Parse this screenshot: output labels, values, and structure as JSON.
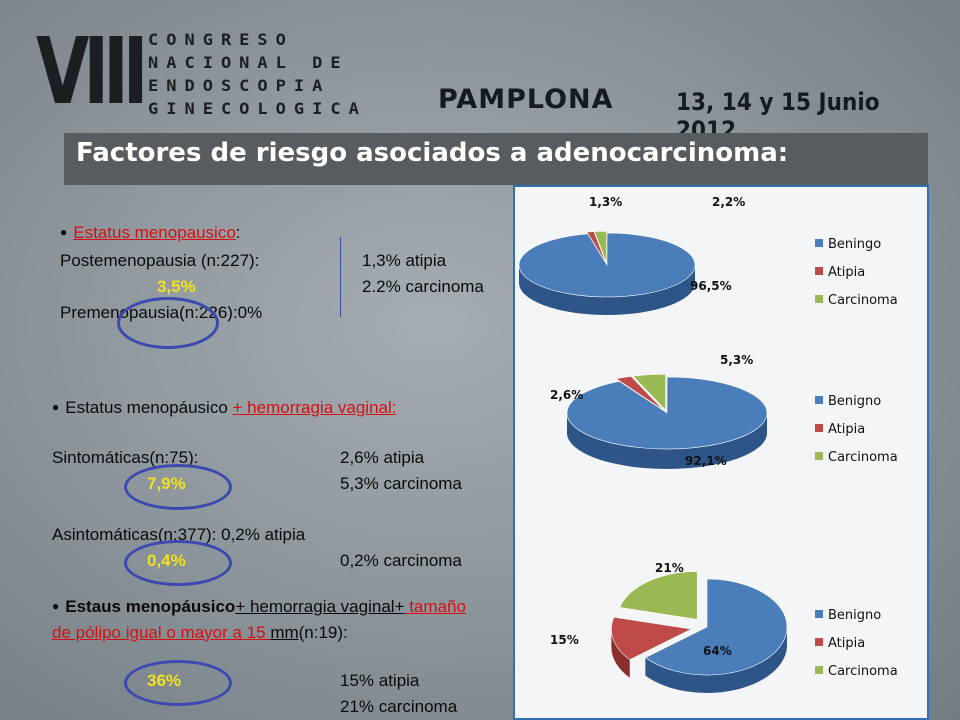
{
  "banner": {
    "roman": "VIII",
    "lines": [
      "CONGRESO",
      "NACIONAL DE",
      "ENDOSCOPIA",
      "GINECOLOGICA"
    ],
    "city": "PAMPLONA",
    "dates": "13, 14 y 15 Junio 2012"
  },
  "title": "Factores de riesgo asociados a adenocarcinoma:",
  "section1": {
    "heading": "Estatus menopausico",
    "heading_suffix": ":",
    "postmeno": "Postemenopausia (n:227):",
    "postmeno_pct": "3,5%",
    "premeno": "Premenopausia(n:226):0%",
    "atipia": "1,3% atipia",
    "carcinoma": "2.2% carcinoma"
  },
  "section2": {
    "heading_a": "Estatus menopáusico ",
    "heading_b": "+ hemorragia vaginal:",
    "sint": "Sintomáticas(n:75):",
    "sint_pct": "7,9%",
    "sint_atipia": "2,6% atipia",
    "sint_carc": "5,3% carcinoma",
    "asint": "Asintomáticas(n:377): 0,2% atipia",
    "asint_pct": "0,4%",
    "asint_carc": "0,2% carcinoma"
  },
  "section3": {
    "heading_a": "Estaus menopáusico",
    "heading_b": "+ hemorragia vaginal+",
    "heading_c": " tamaño",
    "heading_d": "de pólipo igual o mayor a 15 ",
    "heading_e": "mm",
    "heading_f": "(n:19):",
    "pct": "36%",
    "atipia": "15% atipia",
    "carc": "21% carcinoma"
  },
  "colors": {
    "benign": "#4a7ebb",
    "atipia": "#be4b48",
    "carcinoma": "#98b954",
    "title_bg": "#575c60",
    "highlight": "#f3e21a",
    "circle": "#3b49b0"
  },
  "chart_data": [
    {
      "type": "pie",
      "categories": [
        "Beningo",
        "Atipia",
        "Carcinoma"
      ],
      "values": [
        96.5,
        1.3,
        2.2
      ],
      "labels": [
        "96,5%",
        "1,3%",
        "2,2%"
      ],
      "legend": "right"
    },
    {
      "type": "pie",
      "categories": [
        "Benigno",
        "Atipia",
        "Carcinoma"
      ],
      "values": [
        92.1,
        2.6,
        5.3
      ],
      "labels": [
        "92,1%",
        "2,6%",
        "5,3%"
      ],
      "legend": "right"
    },
    {
      "type": "pie",
      "categories": [
        "Benigno",
        "Atipia",
        "Carcinoma"
      ],
      "values": [
        64,
        15,
        21
      ],
      "labels": [
        "64%",
        "15%",
        "21%"
      ],
      "legend": "right"
    }
  ]
}
